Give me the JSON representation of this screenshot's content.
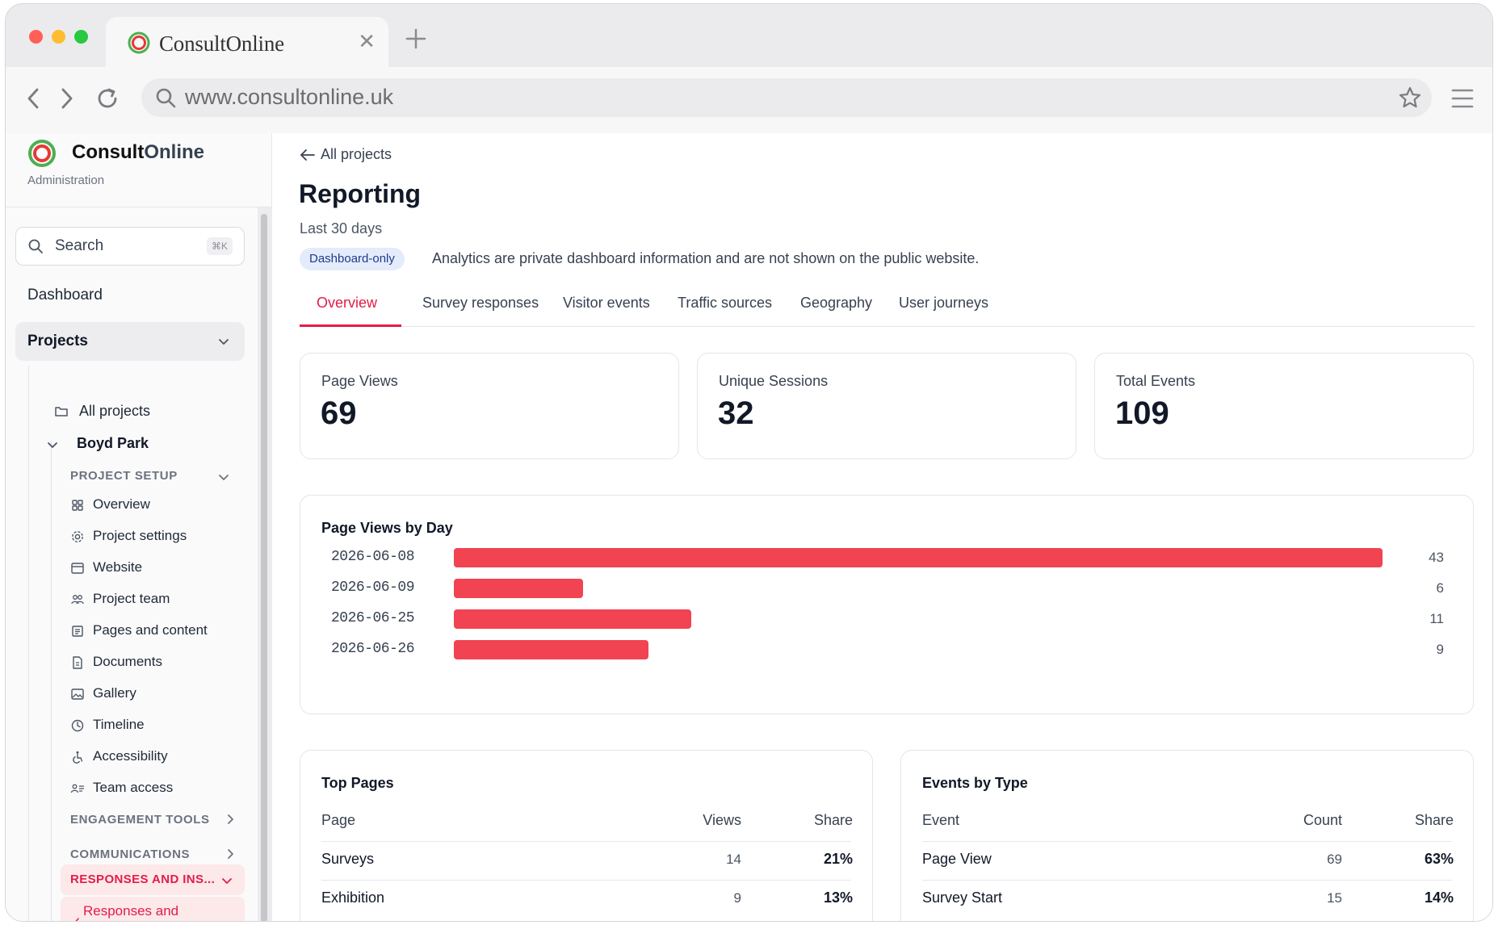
{
  "browser": {
    "tab_title": "ConsultOnline",
    "url": "www.consultonline.uk"
  },
  "sidebar": {
    "brand_name_a": "Consult",
    "brand_name_b": "Online",
    "brand_sub": "Administration",
    "search_label": "Search",
    "search_shortcut": "⌘K",
    "dashboard": "Dashboard",
    "projects": "Projects",
    "all_projects": "All projects",
    "project_name": "Boyd Park",
    "project_setup": "PROJECT SETUP",
    "setup_items": [
      {
        "label": "Overview",
        "icon": "grid-icon"
      },
      {
        "label": "Project settings",
        "icon": "gear-icon"
      },
      {
        "label": "Website",
        "icon": "browser-window-icon"
      },
      {
        "label": "Project team",
        "icon": "team-icon"
      },
      {
        "label": "Pages and content",
        "icon": "pages-icon"
      },
      {
        "label": "Documents",
        "icon": "document-icon"
      },
      {
        "label": "Gallery",
        "icon": "image-icon"
      },
      {
        "label": "Timeline",
        "icon": "clock-icon"
      },
      {
        "label": "Accessibility",
        "icon": "accessibility-icon"
      },
      {
        "label": "Team access",
        "icon": "user-list-icon"
      }
    ],
    "engagement_tools": "ENGAGEMENT TOOLS",
    "communications": "COMMUNICATIONS",
    "responses_section": "RESPONSES AND INS...",
    "responses_item": "Responses and"
  },
  "main": {
    "back_label": "All projects",
    "title": "Reporting",
    "subtitle": "Last 30 days",
    "badge": "Dashboard-only",
    "badge_note": "Analytics are private dashboard information and are not shown on the public website.",
    "tabs": [
      "Overview",
      "Survey responses",
      "Visitor events",
      "Traffic sources",
      "Geography",
      "User journeys"
    ],
    "active_tab": "Overview",
    "kpis": [
      {
        "label": "Page Views",
        "value": "69"
      },
      {
        "label": "Unique Sessions",
        "value": "32"
      },
      {
        "label": "Total Events",
        "value": "109"
      }
    ],
    "accent_color": "#e11d48",
    "bar_color": "#f14352"
  },
  "chart_data": {
    "type": "bar",
    "title": "Page Views by Day",
    "orientation": "horizontal",
    "categories": [
      "2026-06-08",
      "2026-06-09",
      "2026-06-25",
      "2026-06-26"
    ],
    "values": [
      43,
      6,
      11,
      9
    ],
    "xlim": [
      0,
      43
    ]
  },
  "top_pages": {
    "title": "Top Pages",
    "headers": [
      "Page",
      "Views",
      "Share"
    ],
    "rows": [
      {
        "page": "Surveys",
        "views": "14",
        "share": "21%"
      },
      {
        "page": "Exhibition",
        "views": "9",
        "share": "13%"
      }
    ]
  },
  "events_by_type": {
    "title": "Events by Type",
    "headers": [
      "Event",
      "Count",
      "Share"
    ],
    "rows": [
      {
        "event": "Page View",
        "count": "69",
        "share": "63%"
      },
      {
        "event": "Survey Start",
        "count": "15",
        "share": "14%"
      }
    ]
  }
}
